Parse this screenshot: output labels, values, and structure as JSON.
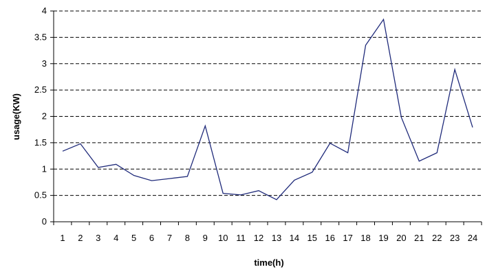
{
  "chart_data": {
    "type": "line",
    "title": "",
    "xlabel": "time(h)",
    "ylabel": "usage(KW)",
    "x": [
      1,
      2,
      3,
      4,
      5,
      6,
      7,
      8,
      9,
      10,
      11,
      12,
      13,
      14,
      15,
      16,
      17,
      18,
      19,
      20,
      21,
      22,
      23,
      24
    ],
    "series": [
      {
        "values": [
          1.34,
          1.48,
          1.03,
          1.09,
          0.88,
          0.78,
          0.82,
          0.86,
          1.82,
          0.54,
          0.51,
          0.59,
          0.42,
          0.79,
          0.94,
          1.49,
          1.31,
          3.35,
          3.84,
          1.98,
          1.15,
          1.31,
          2.89,
          1.79
        ],
        "color": "#1f2a7a"
      }
    ],
    "ylim": [
      0,
      4
    ],
    "y_ticks": [
      "0",
      "0.5",
      "1",
      "1.5",
      "2",
      "2.5",
      "3",
      "3.5",
      "4"
    ],
    "x_ticks": [
      "1",
      "2",
      "3",
      "4",
      "5",
      "6",
      "7",
      "8",
      "9",
      "10",
      "11",
      "12",
      "13",
      "14",
      "15",
      "16",
      "17",
      "18",
      "19",
      "20",
      "21",
      "22",
      "23",
      "24"
    ],
    "grid": "horizontal-dashed",
    "legend": "none"
  }
}
